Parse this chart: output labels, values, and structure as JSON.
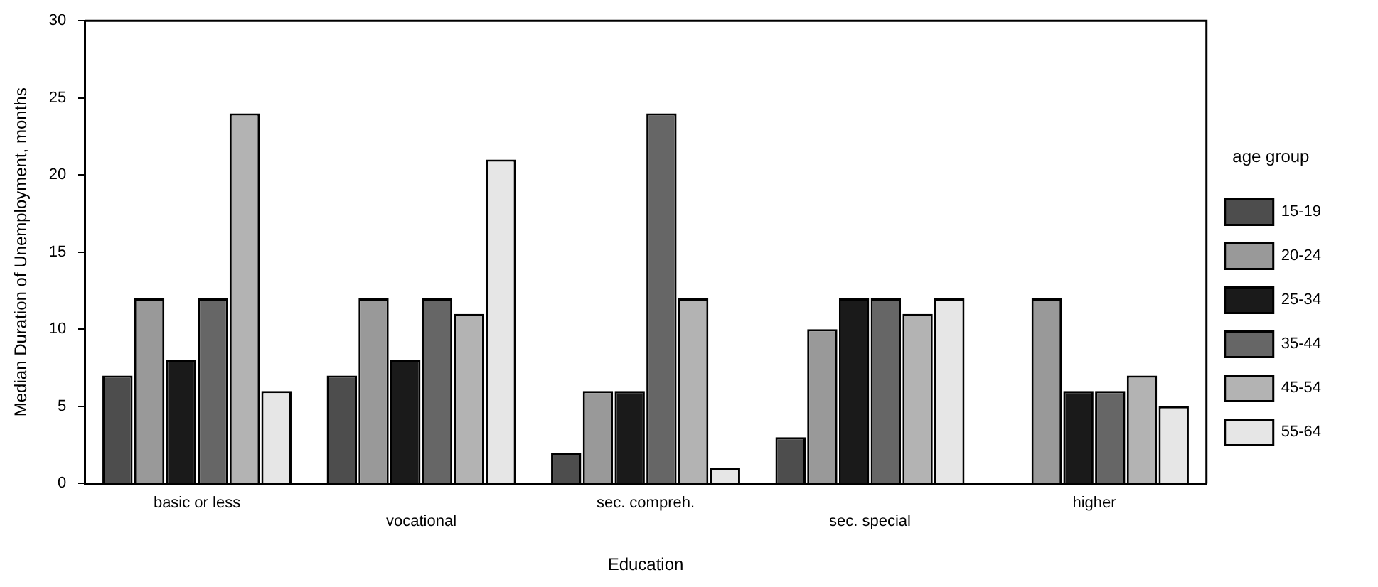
{
  "chart_data": {
    "type": "bar",
    "xlabel": "Education",
    "ylabel": "Median Duration of Unemployment, months",
    "legend_title": "age group",
    "legend": "right",
    "categories": [
      "basic or less",
      "vocational",
      "sec. compreh.",
      "sec. special",
      "higher"
    ],
    "ylim": [
      0,
      30
    ],
    "yticks": [
      0,
      5,
      10,
      15,
      20,
      25,
      30
    ],
    "grid": false,
    "series": [
      {
        "name": "15-19",
        "color": "#4d4d4d",
        "values": [
          7,
          7,
          2,
          3,
          null
        ]
      },
      {
        "name": "20-24",
        "color": "#999999",
        "values": [
          12,
          12,
          6,
          10,
          12
        ]
      },
      {
        "name": "25-34",
        "color": "#1a1a1a",
        "values": [
          8,
          8,
          6,
          12,
          6
        ]
      },
      {
        "name": "35-44",
        "color": "#666666",
        "values": [
          12,
          12,
          24,
          12,
          6
        ]
      },
      {
        "name": "45-54",
        "color": "#b3b3b3",
        "values": [
          24,
          11,
          12,
          11,
          7
        ]
      },
      {
        "name": "55-64",
        "color": "#e6e6e6",
        "values": [
          6,
          21,
          1,
          12,
          5
        ]
      }
    ]
  }
}
